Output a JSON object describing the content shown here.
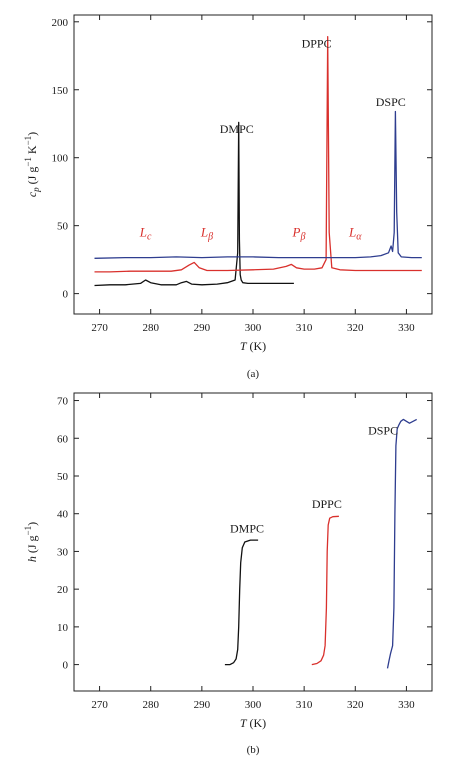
{
  "chart_data": [
    {
      "panel_label": "(a)",
      "type": "line",
      "xlabel": {
        "main": "T",
        "unit": " (K)"
      },
      "ylabel": {
        "main": "c",
        "sub": "p",
        "unit": " (J g",
        "sup": "−1",
        "unit2": " K",
        "sup2": "−1",
        "close": ")"
      },
      "xlim": [
        265,
        335
      ],
      "ylim": [
        -15,
        205
      ],
      "xticks": [
        "270",
        "280",
        "290",
        "300",
        "310",
        "320",
        "330"
      ],
      "yticks": [
        "0",
        "50",
        "100",
        "150",
        "200"
      ],
      "grid": false,
      "phase_labels": [
        {
          "main": "L",
          "sub": "c",
          "x": 279,
          "y": 42
        },
        {
          "main": "L",
          "sub": "β",
          "x": 291,
          "y": 42
        },
        {
          "main": "P",
          "sub": "β",
          "x": 309,
          "y": 42
        },
        {
          "main": "L",
          "sub": "α",
          "x": 320,
          "y": 42
        }
      ],
      "series": [
        {
          "name": "DMPC",
          "color": "#111111",
          "label_pos": [
            293.5,
            118
          ],
          "x": [
            269,
            272,
            275,
            278,
            279,
            280,
            282,
            285,
            286,
            287,
            288,
            290,
            293,
            295,
            296.5,
            297,
            297.2,
            297.35,
            297.5,
            297.7,
            298,
            299,
            302,
            305,
            308
          ],
          "y": [
            6,
            6.5,
            6.5,
            7.5,
            10,
            8,
            6.5,
            6.5,
            8,
            9,
            7,
            6.5,
            7,
            8,
            10,
            30,
            126,
            40,
            14,
            10,
            8,
            7.5,
            7.5,
            7.5,
            7.5
          ]
        },
        {
          "name": "DPPC",
          "color": "#d9302c",
          "label_pos": [
            309.5,
            181
          ],
          "x": [
            269,
            272,
            276,
            280,
            284,
            286,
            287.5,
            288.5,
            289.5,
            291,
            295,
            300,
            304,
            306.5,
            307.5,
            308.5,
            310,
            312,
            313.5,
            314.3,
            314.6,
            314.9,
            315.4,
            317,
            320,
            324,
            328,
            331,
            333
          ],
          "y": [
            16,
            16,
            16.5,
            16.5,
            16.5,
            17.5,
            21,
            23,
            19,
            17,
            17,
            17.5,
            18,
            20,
            21.5,
            19,
            18,
            18,
            19,
            25,
            189,
            45,
            19,
            17.5,
            17,
            17,
            17,
            17,
            17
          ]
        },
        {
          "name": "DSPC",
          "color": "#2e3d8f",
          "label_pos": [
            324,
            138
          ],
          "x": [
            269,
            275,
            280,
            285,
            290,
            295,
            300,
            305,
            310,
            315,
            320,
            323,
            325,
            326.5,
            327,
            327.3,
            327.6,
            327.85,
            328.1,
            328.4,
            329,
            331,
            333
          ],
          "y": [
            26,
            26.5,
            26.5,
            27,
            26.5,
            27,
            27,
            26.5,
            26.5,
            26.5,
            26.5,
            27,
            28,
            30,
            35,
            31,
            45,
            134,
            60,
            30,
            27,
            26.5,
            26.5
          ]
        }
      ]
    },
    {
      "panel_label": "(b)",
      "type": "line",
      "xlabel": {
        "main": "T",
        "unit": " (K)"
      },
      "ylabel": {
        "main": "h",
        "unit": " (J g",
        "sup": "−1",
        "close": ")"
      },
      "xlim": [
        265,
        335
      ],
      "ylim": [
        -7,
        72
      ],
      "xticks": [
        "270",
        "280",
        "290",
        "300",
        "310",
        "320",
        "330"
      ],
      "yticks": [
        "0",
        "10",
        "20",
        "30",
        "40",
        "50",
        "60",
        "70"
      ],
      "grid": false,
      "series": [
        {
          "name": "DMPC",
          "color": "#111111",
          "label_pos": [
            295.5,
            35
          ],
          "x": [
            294.5,
            295.5,
            296.2,
            296.7,
            297.0,
            297.2,
            297.4,
            297.6,
            297.9,
            298.4,
            299.5,
            301
          ],
          "y": [
            0,
            0,
            0.5,
            1.5,
            4,
            10,
            20,
            27,
            31,
            32.5,
            33,
            33
          ]
        },
        {
          "name": "DPPC",
          "color": "#d9302c",
          "label_pos": [
            311.5,
            41.5
          ],
          "x": [
            311.5,
            312.5,
            313.3,
            313.8,
            314.1,
            314.35,
            314.5,
            314.7,
            315.0,
            315.6,
            316.8
          ],
          "y": [
            0,
            0.3,
            1,
            2.5,
            5,
            15,
            30,
            37,
            38.8,
            39.2,
            39.3
          ]
        },
        {
          "name": "DSPC",
          "color": "#2e3d8f",
          "label_pos": [
            322.5,
            61
          ],
          "x": [
            326.3,
            326.6,
            326.9,
            327.1,
            327.3,
            327.55,
            327.75,
            327.95,
            328.2,
            328.5,
            328.9,
            329.4,
            330,
            330.6,
            331.3,
            332
          ],
          "y": [
            -1,
            1,
            3,
            4,
            5,
            15,
            40,
            58,
            62.5,
            63.5,
            64.5,
            65,
            64.5,
            64,
            64.5,
            65
          ]
        }
      ]
    }
  ]
}
